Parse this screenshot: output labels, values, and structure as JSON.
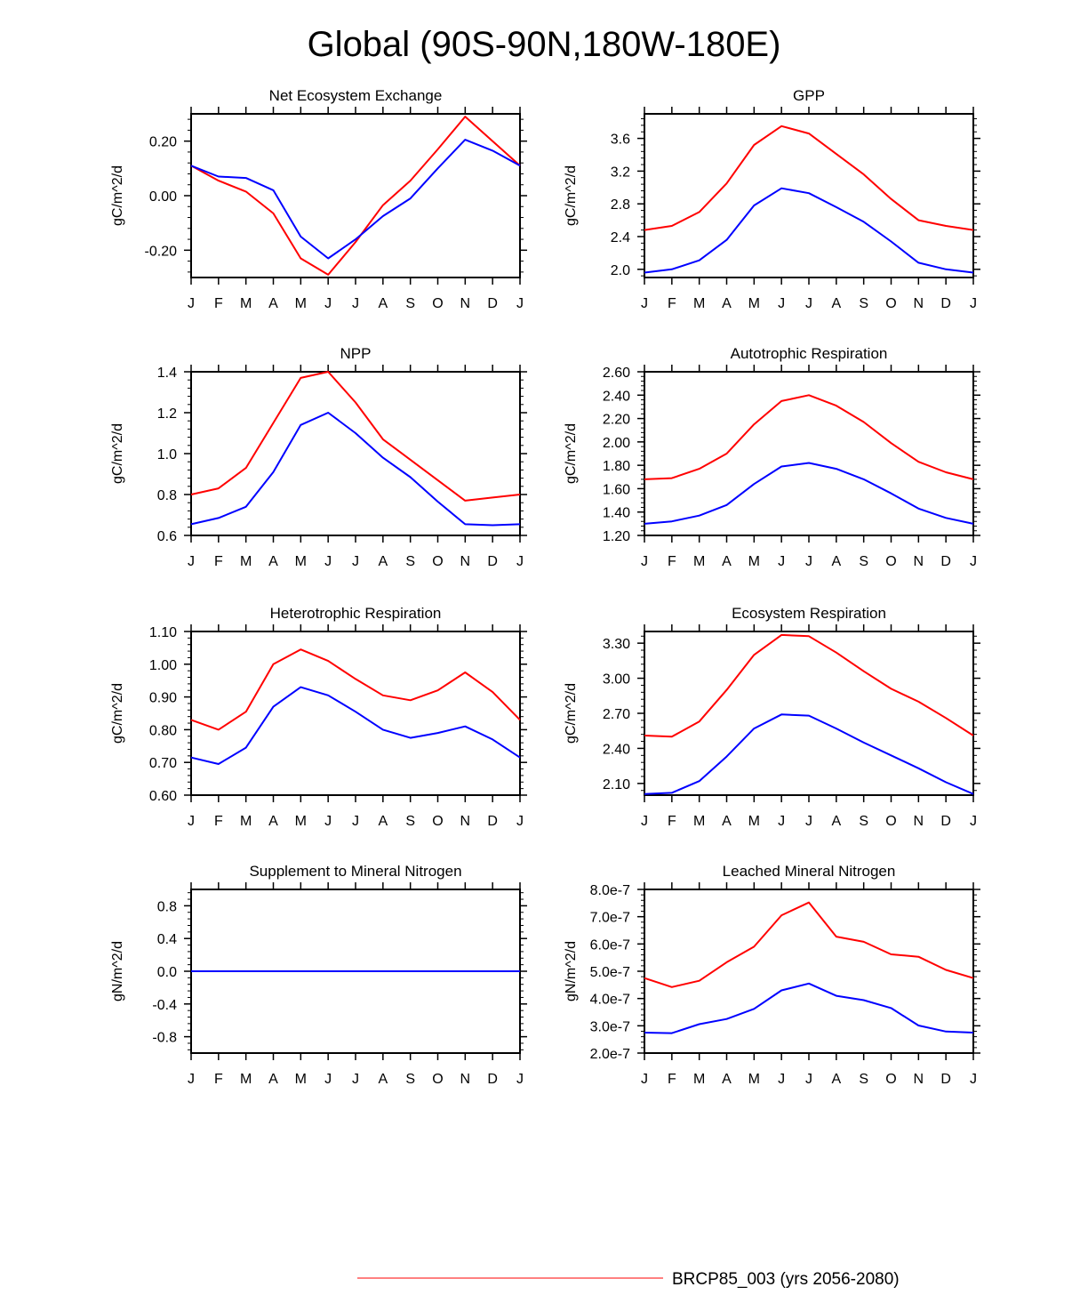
{
  "page_title": "Global (90S-90N,180W-180E)",
  "colors": {
    "series_1": "#ff0000",
    "series_2": "#0000ff"
  },
  "legend": {
    "label": "BRCP85_003 (yrs 2056-2080)",
    "color": "#ff0000"
  },
  "chart_data": [
    {
      "type": "line",
      "title": "Net Ecosystem Exchange",
      "ylabel": "gC/m^2/d",
      "categories": [
        "J",
        "F",
        "M",
        "A",
        "M",
        "J",
        "J",
        "A",
        "S",
        "O",
        "N",
        "D",
        "J"
      ],
      "ylim": [
        -0.3,
        0.3
      ],
      "ytick_values": [
        -0.2,
        0.0,
        0.2
      ],
      "ytick_labels": [
        "-0.20",
        "0.00",
        "0.20"
      ],
      "series": [
        {
          "name": "red",
          "color": "#ff0000",
          "values": [
            0.11,
            0.055,
            0.015,
            -0.065,
            -0.23,
            -0.29,
            -0.17,
            -0.035,
            0.055,
            0.17,
            0.29,
            0.2,
            0.11
          ]
        },
        {
          "name": "blue",
          "color": "#0000ff",
          "values": [
            0.11,
            0.07,
            0.065,
            0.02,
            -0.15,
            -0.23,
            -0.16,
            -0.075,
            -0.01,
            0.1,
            0.205,
            0.165,
            0.11
          ]
        }
      ]
    },
    {
      "type": "line",
      "title": "GPP",
      "ylabel": "gC/m^2/d",
      "categories": [
        "J",
        "F",
        "M",
        "A",
        "M",
        "J",
        "J",
        "A",
        "S",
        "O",
        "N",
        "D",
        "J"
      ],
      "ylim": [
        1.9,
        3.9
      ],
      "ytick_values": [
        2.0,
        2.4,
        2.8,
        3.2,
        3.6
      ],
      "ytick_labels": [
        "2.0",
        "2.4",
        "2.8",
        "3.2",
        "3.6"
      ],
      "series": [
        {
          "name": "red",
          "color": "#ff0000",
          "values": [
            2.48,
            2.53,
            2.7,
            3.05,
            3.52,
            3.75,
            3.66,
            3.41,
            3.16,
            2.86,
            2.6,
            2.53,
            2.48
          ]
        },
        {
          "name": "blue",
          "color": "#0000ff",
          "values": [
            1.96,
            2.0,
            2.11,
            2.36,
            2.78,
            2.99,
            2.93,
            2.76,
            2.58,
            2.34,
            2.08,
            2.0,
            1.96
          ]
        }
      ]
    },
    {
      "type": "line",
      "title": "NPP",
      "ylabel": "gC/m^2/d",
      "categories": [
        "J",
        "F",
        "M",
        "A",
        "M",
        "J",
        "J",
        "A",
        "S",
        "O",
        "N",
        "D",
        "J"
      ],
      "ylim": [
        0.6,
        1.4
      ],
      "ytick_values": [
        0.6,
        0.8,
        1.0,
        1.2,
        1.4
      ],
      "ytick_labels": [
        "0.6",
        "0.8",
        "1.0",
        "1.2",
        "1.4"
      ],
      "series": [
        {
          "name": "red",
          "color": "#ff0000",
          "values": [
            0.8,
            0.83,
            0.93,
            1.15,
            1.37,
            1.4,
            1.25,
            1.07,
            0.97,
            0.87,
            0.77,
            0.785,
            0.8
          ]
        },
        {
          "name": "blue",
          "color": "#0000ff",
          "values": [
            0.655,
            0.685,
            0.74,
            0.91,
            1.14,
            1.2,
            1.1,
            0.98,
            0.885,
            0.765,
            0.655,
            0.65,
            0.655
          ]
        }
      ]
    },
    {
      "type": "line",
      "title": "Autotrophic Respiration",
      "ylabel": "gC/m^2/d",
      "categories": [
        "J",
        "F",
        "M",
        "A",
        "M",
        "J",
        "J",
        "A",
        "S",
        "O",
        "N",
        "D",
        "J"
      ],
      "ylim": [
        1.2,
        2.6
      ],
      "ytick_values": [
        1.2,
        1.4,
        1.6,
        1.8,
        2.0,
        2.2,
        2.4,
        2.6
      ],
      "ytick_labels": [
        "1.20",
        "1.40",
        "1.60",
        "1.80",
        "2.00",
        "2.20",
        "2.40",
        "2.60"
      ],
      "series": [
        {
          "name": "red",
          "color": "#ff0000",
          "values": [
            1.68,
            1.69,
            1.77,
            1.9,
            2.15,
            2.35,
            2.4,
            2.31,
            2.17,
            1.99,
            1.83,
            1.74,
            1.68
          ]
        },
        {
          "name": "blue",
          "color": "#0000ff",
          "values": [
            1.3,
            1.32,
            1.37,
            1.46,
            1.64,
            1.79,
            1.82,
            1.77,
            1.68,
            1.56,
            1.43,
            1.35,
            1.3
          ]
        }
      ]
    },
    {
      "type": "line",
      "title": "Heterotrophic Respiration",
      "ylabel": "gC/m^2/d",
      "categories": [
        "J",
        "F",
        "M",
        "A",
        "M",
        "J",
        "J",
        "A",
        "S",
        "O",
        "N",
        "D",
        "J"
      ],
      "ylim": [
        0.6,
        1.1
      ],
      "ytick_values": [
        0.6,
        0.7,
        0.8,
        0.9,
        1.0,
        1.1
      ],
      "ytick_labels": [
        "0.60",
        "0.70",
        "0.80",
        "0.90",
        "1.00",
        "1.10"
      ],
      "series": [
        {
          "name": "red",
          "color": "#ff0000",
          "values": [
            0.83,
            0.8,
            0.855,
            1.0,
            1.045,
            1.01,
            0.955,
            0.905,
            0.89,
            0.92,
            0.975,
            0.915,
            0.83
          ]
        },
        {
          "name": "blue",
          "color": "#0000ff",
          "values": [
            0.715,
            0.695,
            0.745,
            0.87,
            0.93,
            0.905,
            0.855,
            0.8,
            0.775,
            0.79,
            0.81,
            0.77,
            0.715
          ]
        }
      ]
    },
    {
      "type": "line",
      "title": "Ecosystem Respiration",
      "ylabel": "gC/m^2/d",
      "categories": [
        "J",
        "F",
        "M",
        "A",
        "M",
        "J",
        "J",
        "A",
        "S",
        "O",
        "N",
        "D",
        "J"
      ],
      "ylim": [
        2.0,
        3.4
      ],
      "ytick_values": [
        2.1,
        2.4,
        2.7,
        3.0,
        3.3
      ],
      "ytick_labels": [
        "2.10",
        "2.40",
        "2.70",
        "3.00",
        "3.30"
      ],
      "series": [
        {
          "name": "red",
          "color": "#ff0000",
          "values": [
            2.51,
            2.5,
            2.63,
            2.9,
            3.2,
            3.37,
            3.36,
            3.22,
            3.06,
            2.91,
            2.8,
            2.66,
            2.51
          ]
        },
        {
          "name": "blue",
          "color": "#0000ff",
          "values": [
            2.01,
            2.02,
            2.12,
            2.33,
            2.57,
            2.69,
            2.68,
            2.57,
            2.45,
            2.34,
            2.23,
            2.11,
            2.01
          ]
        }
      ]
    },
    {
      "type": "line",
      "title": "Supplement to Mineral Nitrogen",
      "ylabel": "gN/m^2/d",
      "categories": [
        "J",
        "F",
        "M",
        "A",
        "M",
        "J",
        "J",
        "A",
        "S",
        "O",
        "N",
        "D",
        "J"
      ],
      "ylim": [
        -1.0,
        1.0
      ],
      "ytick_values": [
        -0.8,
        -0.4,
        0.0,
        0.4,
        0.8
      ],
      "ytick_labels": [
        "-0.8",
        "-0.4",
        "0.0",
        "0.4",
        "0.8"
      ],
      "series": [
        {
          "name": "red",
          "color": "#ff0000",
          "values": [
            0,
            0,
            0,
            0,
            0,
            0,
            0,
            0,
            0,
            0,
            0,
            0,
            0
          ]
        },
        {
          "name": "blue",
          "color": "#0000ff",
          "values": [
            0,
            0,
            0,
            0,
            0,
            0,
            0,
            0,
            0,
            0,
            0,
            0,
            0
          ]
        }
      ]
    },
    {
      "type": "line",
      "title": "Leached Mineral Nitrogen",
      "ylabel": "gN/m^2/d",
      "categories": [
        "J",
        "F",
        "M",
        "A",
        "M",
        "J",
        "J",
        "A",
        "S",
        "O",
        "N",
        "D",
        "J"
      ],
      "ylim": [
        2e-07,
        8e-07
      ],
      "ytick_values": [
        2e-07,
        3e-07,
        4e-07,
        5e-07,
        6e-07,
        7e-07,
        8e-07
      ],
      "ytick_labels": [
        "2.0e-7",
        "3.0e-7",
        "4.0e-7",
        "5.0e-7",
        "6.0e-7",
        "7.0e-7",
        "8.0e-7"
      ],
      "series": [
        {
          "name": "red",
          "color": "#ff0000",
          "values": [
            4.75e-07,
            4.42e-07,
            4.65e-07,
            5.33e-07,
            5.9e-07,
            7.05e-07,
            7.52e-07,
            6.27e-07,
            6.08e-07,
            5.62e-07,
            5.53e-07,
            5.05e-07,
            4.75e-07
          ]
        },
        {
          "name": "blue",
          "color": "#0000ff",
          "values": [
            2.75e-07,
            2.73e-07,
            3.06e-07,
            3.25e-07,
            3.62e-07,
            4.3e-07,
            4.55e-07,
            4.1e-07,
            3.94e-07,
            3.65e-07,
            3.01e-07,
            2.79e-07,
            2.75e-07
          ]
        }
      ]
    }
  ]
}
